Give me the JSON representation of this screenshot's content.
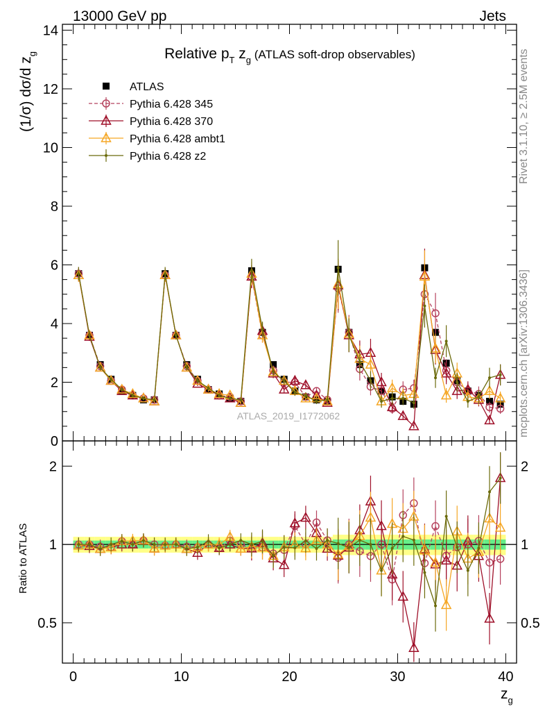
{
  "header": {
    "energy_label": "13000 GeV pp",
    "process_label": "Jets",
    "plot_title": "Relative p",
    "plot_title_sub": "T",
    "plot_title_z": " z",
    "plot_title_zsub": "g",
    "plot_title_rest": " (ATLAS soft-drop observables)",
    "side_label_top": "Rivet 3.1.10, ≥ 2.5M events",
    "side_label_bottom": "mcplots.cern.ch [arXiv:1306.3436]",
    "analysis_id": "ATLAS_2019_I1772062"
  },
  "chart_data": [
    {
      "type": "scatter",
      "ylabel": "(1/σ) dσ/d z",
      "ylabel_sub": "g",
      "xlim": [
        -1,
        41
      ],
      "ylim": [
        0,
        14.2
      ],
      "yticks": [
        0,
        2,
        4,
        6,
        8,
        10,
        12,
        14
      ],
      "legend_position": "top-left",
      "x": [
        0.5,
        1.5,
        2.5,
        3.5,
        4.5,
        5.5,
        6.5,
        7.5,
        8.5,
        9.5,
        10.5,
        11.5,
        12.5,
        13.5,
        14.5,
        15.5,
        16.5,
        17.5,
        18.5,
        19.5,
        20.5,
        21.5,
        22.5,
        23.5,
        24.5,
        25.5,
        26.5,
        27.5,
        28.5,
        29.5,
        30.5,
        31.5,
        32.5,
        33.5,
        34.5,
        35.5,
        36.5,
        37.5,
        38.5,
        39.5
      ],
      "series": [
        {
          "name": "ATLAS",
          "color": "#000000",
          "marker": "square",
          "values": [
            5.7,
            3.6,
            2.6,
            2.1,
            1.7,
            1.55,
            1.4,
            1.4,
            5.7,
            3.6,
            2.6,
            2.1,
            1.75,
            1.6,
            1.45,
            1.35,
            5.8,
            3.7,
            2.6,
            2.1,
            1.7,
            1.5,
            1.4,
            1.35,
            5.85,
            3.7,
            2.6,
            2.05,
            1.7,
            1.5,
            1.35,
            1.25,
            5.9,
            3.7,
            2.65,
            2.05,
            1.7,
            1.55,
            1.35,
            1.25
          ]
        },
        {
          "name": "Pythia 6.428 345",
          "color": "#b5425d",
          "marker": "circle",
          "dashed": true,
          "values": [
            5.7,
            3.6,
            2.55,
            2.05,
            1.75,
            1.55,
            1.45,
            1.4,
            5.65,
            3.6,
            2.55,
            2.05,
            1.75,
            1.55,
            1.5,
            1.35,
            5.6,
            3.6,
            2.4,
            2.0,
            2.0,
            1.5,
            1.7,
            1.4,
            5.2,
            3.7,
            2.45,
            1.85,
            1.7,
            1.1,
            1.75,
            1.8,
            5.0,
            4.35,
            2.4,
            2.0,
            1.7,
            1.6,
            1.15,
            1.1
          ]
        },
        {
          "name": "Pythia 6.428 370",
          "color": "#9e0f28",
          "marker": "triangle",
          "values": [
            5.65,
            3.55,
            2.5,
            2.05,
            1.7,
            1.55,
            1.45,
            1.35,
            5.65,
            3.6,
            2.5,
            1.95,
            1.75,
            1.55,
            1.45,
            1.3,
            5.6,
            3.75,
            2.3,
            1.75,
            2.05,
            1.9,
            1.55,
            1.3,
            5.3,
            3.6,
            2.95,
            3.0,
            2.0,
            1.15,
            0.85,
            0.5,
            5.65,
            3.1,
            2.3,
            1.7,
            1.75,
            1.4,
            0.7,
            2.25
          ]
        },
        {
          "name": "Pythia 6.428 ambt1",
          "color": "#f5a623",
          "marker": "triangle",
          "values": [
            5.65,
            3.6,
            2.5,
            2.05,
            1.75,
            1.6,
            1.45,
            1.35,
            5.65,
            3.6,
            2.5,
            2.05,
            1.75,
            1.6,
            1.55,
            1.3,
            5.7,
            3.6,
            2.35,
            2.05,
            1.7,
            1.45,
            1.45,
            1.35,
            5.35,
            3.65,
            2.8,
            2.6,
            1.35,
            1.8,
            1.55,
            1.6,
            5.6,
            3.15,
            1.55,
            2.3,
            1.5,
            1.45,
            1.7,
            1.45
          ]
        },
        {
          "name": "Pythia 6.428 z2",
          "color": "#6b6a0b",
          "marker": "dot",
          "values": [
            5.7,
            3.6,
            2.5,
            2.1,
            1.75,
            1.55,
            1.45,
            1.4,
            5.7,
            3.6,
            2.5,
            2.05,
            1.8,
            1.55,
            1.45,
            1.4,
            5.8,
            3.8,
            2.35,
            2.05,
            1.65,
            1.55,
            1.35,
            1.4,
            5.9,
            3.6,
            2.7,
            2.05,
            1.35,
            1.45,
            1.45,
            1.3,
            4.6,
            2.15,
            3.4,
            2.0,
            1.35,
            1.5,
            2.15,
            2.25
          ]
        }
      ]
    },
    {
      "type": "scatter",
      "ylabel": "Ratio to ATLAS",
      "xlabel": "z",
      "xlabel_sub": "g",
      "xlim": [
        -1,
        41
      ],
      "ylim": [
        0.35,
        2.5
      ],
      "yscale": "log",
      "yticks": [
        0.5,
        1,
        2
      ],
      "xticks": [
        0,
        10,
        20,
        30,
        40
      ],
      "reference_line": 1,
      "bands": [
        {
          "name": "inner",
          "color": "#66ee88"
        },
        {
          "name": "outer",
          "color": "#ffff88"
        }
      ]
    }
  ]
}
